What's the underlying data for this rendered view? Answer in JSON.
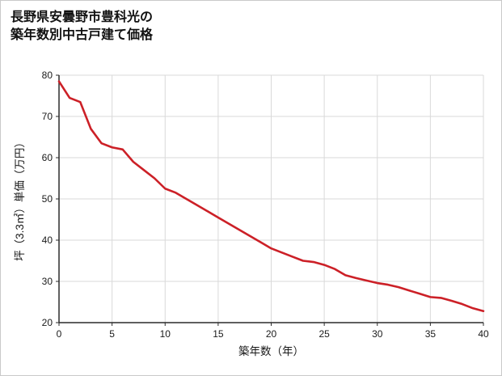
{
  "title": {
    "line1": "長野県安曇野市豊科光の",
    "line2": "築年数別中古戸建て価格"
  },
  "chart_data": {
    "type": "line",
    "title": "長野県安曇野市豊科光の築年数別中古戸建て価格",
    "xlabel": "築年数（年）",
    "ylabel": "坪（3.3㎡）単価（万円）",
    "x": [
      0,
      1,
      2,
      3,
      4,
      5,
      6,
      7,
      8,
      9,
      10,
      11,
      12,
      13,
      14,
      15,
      16,
      17,
      18,
      19,
      20,
      21,
      22,
      23,
      24,
      25,
      26,
      27,
      28,
      29,
      30,
      31,
      32,
      33,
      34,
      35,
      36,
      37,
      38,
      39,
      40
    ],
    "y": [
      78.5,
      74.5,
      73.5,
      67,
      63.5,
      62.5,
      62,
      59,
      57,
      55,
      52.5,
      51.5,
      50,
      48.5,
      47,
      45.5,
      44,
      42.5,
      41,
      39.5,
      38,
      37,
      36,
      35,
      34.7,
      34,
      33,
      31.5,
      30.8,
      30.2,
      29.6,
      29.2,
      28.6,
      27.8,
      27,
      26.2,
      26,
      25.3,
      24.5,
      23.5,
      22.8
    ],
    "xlim": [
      0,
      40
    ],
    "ylim": [
      20,
      80
    ],
    "x_ticks": [
      0,
      5,
      10,
      15,
      20,
      25,
      30,
      35,
      40
    ],
    "y_ticks": [
      20,
      30,
      40,
      50,
      60,
      70,
      80
    ],
    "grid": true,
    "legend_position": "none",
    "line_color": "#cc2027",
    "grid_color": "#d9d9d9",
    "axis_color": "#2b2b2b",
    "tick_label_color": "#1a1a1a"
  }
}
